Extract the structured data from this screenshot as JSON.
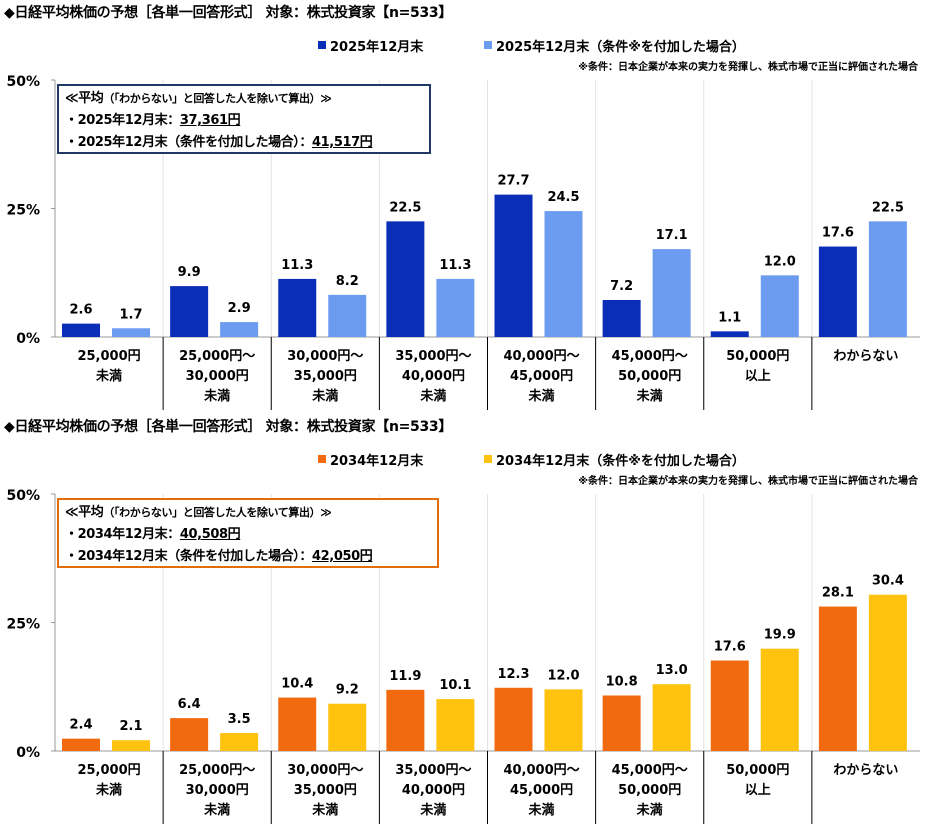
{
  "chart_data": [
    {
      "type": "bar",
      "title": "◆日経平均株価の予想［各単一回答形式］ 対象：株式投資家【n=533】",
      "categories": [
        [
          "25,000円",
          "未満"
        ],
        [
          "25,000円～",
          "30,000円",
          "未満"
        ],
        [
          "30,000円～",
          "35,000円",
          "未満"
        ],
        [
          "35,000円～",
          "40,000円",
          "未満"
        ],
        [
          "40,000円～",
          "45,000円",
          "未満"
        ],
        [
          "45,000円～",
          "50,000円",
          "未満"
        ],
        [
          "50,000円",
          "以上"
        ],
        [
          "わからない"
        ]
      ],
      "series": [
        {
          "name": "2025年12月末",
          "color": "#0a2eb8",
          "values": [
            2.6,
            9.9,
            11.3,
            22.5,
            27.7,
            7.2,
            1.1,
            17.6
          ]
        },
        {
          "name": "2025年12月末（条件※を付加した場合）",
          "color": "#6c9cf0",
          "values": [
            1.7,
            2.9,
            8.2,
            11.3,
            24.5,
            17.1,
            12.0,
            22.5
          ]
        }
      ],
      "ylim": [
        0,
        50
      ],
      "yticks": [
        "0%",
        "25%",
        "50%"
      ],
      "ytick_values": [
        0,
        25,
        50
      ],
      "note": "※条件：日本企業が本来の実力を発揮し、株式市場で正当に評価された場合",
      "legend": "top-right",
      "box_color": "#1f3864",
      "box": {
        "heading": "≪平均",
        "heading_small": "（「わからない」と回答した人を除いて算出）≫",
        "line1_label": "・2025年12月末：",
        "line1_value": "37,361円",
        "line2_label": "・2025年12月末（条件を付加した場合）：",
        "line2_value": "41,517円"
      }
    },
    {
      "type": "bar",
      "title": "◆日経平均株価の予想［各単一回答形式］ 対象：株式投資家【n=533】",
      "categories": [
        [
          "25,000円",
          "未満"
        ],
        [
          "25,000円～",
          "30,000円",
          "未満"
        ],
        [
          "30,000円～",
          "35,000円",
          "未満"
        ],
        [
          "35,000円～",
          "40,000円",
          "未満"
        ],
        [
          "40,000円～",
          "45,000円",
          "未満"
        ],
        [
          "45,000円～",
          "50,000円",
          "未満"
        ],
        [
          "50,000円",
          "以上"
        ],
        [
          "わからない"
        ]
      ],
      "series": [
        {
          "name": "2034年12月末",
          "color": "#f26a10",
          "values": [
            2.4,
            6.4,
            10.4,
            11.9,
            12.3,
            10.8,
            17.6,
            28.1
          ]
        },
        {
          "name": "2034年12月末（条件※を付加した場合）",
          "color": "#ffc20e",
          "values": [
            2.1,
            3.5,
            9.2,
            10.1,
            12.0,
            13.0,
            19.9,
            30.4
          ]
        }
      ],
      "ylim": [
        0,
        50
      ],
      "yticks": [
        "0%",
        "25%",
        "50%"
      ],
      "ytick_values": [
        0,
        25,
        50
      ],
      "note": "※条件：日本企業が本来の実力を発揮し、株式市場で正当に評価された場合",
      "legend": "top-right",
      "box_color": "#e46c0a",
      "box": {
        "heading": "≪平均",
        "heading_small": "（「わからない」と回答した人を除いて算出）≫",
        "line1_label": "・2034年12月末：",
        "line1_value": "40,508円",
        "line2_label": "・2034年12月末（条件を付加した場合）：",
        "line2_value": "42,050円"
      }
    }
  ]
}
